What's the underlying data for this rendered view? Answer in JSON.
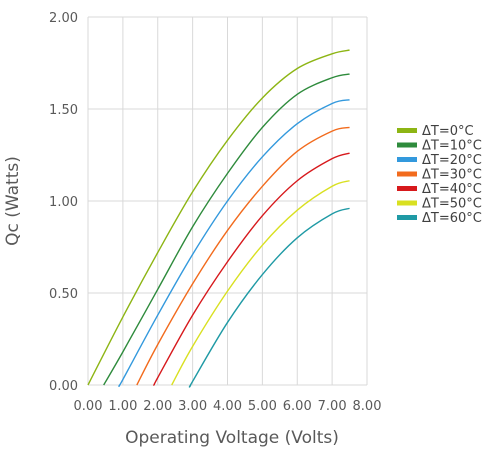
{
  "chart_data": {
    "type": "line",
    "title": "",
    "xlabel": "Operating Voltage (Volts)",
    "ylabel": "Qc (Watts)",
    "xlim": [
      0,
      8
    ],
    "ylim": [
      0,
      2
    ],
    "x_ticks": [
      "0.00",
      "1.00",
      "2.00",
      "3.00",
      "4.00",
      "5.00",
      "6.00",
      "7.00",
      "8.00"
    ],
    "y_ticks": [
      "0.00",
      "0.50",
      "1.00",
      "1.50",
      "2.00"
    ],
    "grid": true,
    "legend_position": "right",
    "series": [
      {
        "name": "ΔT=0°C",
        "color": "#8db514",
        "x": [
          0.0,
          1.0,
          2.0,
          3.0,
          4.0,
          5.0,
          6.0,
          7.0,
          7.5
        ],
        "y": [
          0.0,
          0.37,
          0.72,
          1.05,
          1.33,
          1.56,
          1.72,
          1.8,
          1.82
        ]
      },
      {
        "name": "ΔT=10°C",
        "color": "#2e8b3c",
        "x": [
          0.45,
          1.0,
          2.0,
          3.0,
          4.0,
          5.0,
          6.0,
          7.0,
          7.5
        ],
        "y": [
          0.0,
          0.18,
          0.52,
          0.86,
          1.15,
          1.4,
          1.58,
          1.67,
          1.69
        ]
      },
      {
        "name": "ΔT=20°C",
        "color": "#3399dd",
        "x": [
          0.9,
          1.0,
          2.0,
          3.0,
          4.0,
          5.0,
          6.0,
          7.0,
          7.5
        ],
        "y": [
          0.0,
          0.03,
          0.38,
          0.71,
          1.0,
          1.24,
          1.42,
          1.53,
          1.55
        ]
      },
      {
        "name": "ΔT=30°C",
        "color": "#f26b1d",
        "x": [
          1.4,
          2.0,
          3.0,
          4.0,
          5.0,
          6.0,
          7.0,
          7.5
        ],
        "y": [
          0.0,
          0.22,
          0.55,
          0.84,
          1.08,
          1.27,
          1.38,
          1.4
        ]
      },
      {
        "name": "ΔT=40°C",
        "color": "#d7191c",
        "x": [
          1.9,
          2.0,
          3.0,
          4.0,
          5.0,
          6.0,
          7.0,
          7.5
        ],
        "y": [
          0.0,
          0.04,
          0.38,
          0.67,
          0.92,
          1.11,
          1.23,
          1.26
        ]
      },
      {
        "name": "ΔT=50°C",
        "color": "#d9e021",
        "x": [
          2.4,
          3.0,
          4.0,
          5.0,
          6.0,
          7.0,
          7.5
        ],
        "y": [
          0.0,
          0.21,
          0.51,
          0.76,
          0.95,
          1.08,
          1.11
        ]
      },
      {
        "name": "ΔT=60°C",
        "color": "#1f9aa5",
        "x": [
          2.95,
          3.0,
          4.0,
          5.0,
          6.0,
          7.0,
          7.5
        ],
        "y": [
          0.0,
          0.02,
          0.34,
          0.6,
          0.8,
          0.93,
          0.96
        ]
      }
    ]
  }
}
